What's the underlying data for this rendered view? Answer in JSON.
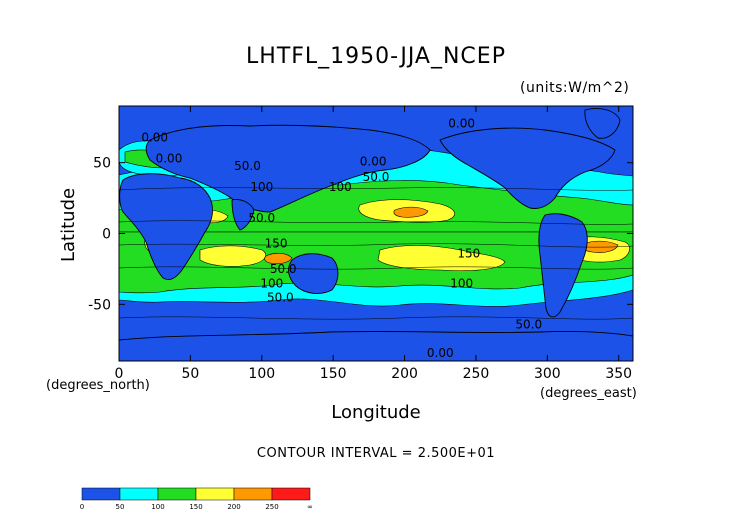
{
  "chart_data": {
    "type": "heatmap",
    "title": "LHTFL_1950-JJA_NCEP",
    "units": "(units:W/m^2)",
    "xlabel": "Longitude",
    "ylabel": "Latitude",
    "x_unit_label": "(degrees_east)",
    "y_unit_label": "(degrees_north)",
    "contour_interval_text": "CONTOUR INTERVAL = 2.500E+01",
    "xlim": [
      0,
      360
    ],
    "ylim": [
      -90,
      90
    ],
    "x_ticks": [
      0,
      50,
      100,
      150,
      200,
      250,
      300,
      350
    ],
    "y_ticks": [
      -50,
      0,
      50
    ],
    "contour_labels": [
      {
        "text": "0.00",
        "lon": 25,
        "lat": 65
      },
      {
        "text": "0.00",
        "lon": 35,
        "lat": 50
      },
      {
        "text": "50.0",
        "lon": 90,
        "lat": 45
      },
      {
        "text": "100",
        "lon": 100,
        "lat": 30
      },
      {
        "text": "50.0",
        "lon": 100,
        "lat": 8
      },
      {
        "text": "150",
        "lon": 110,
        "lat": -10
      },
      {
        "text": "50.0",
        "lon": 115,
        "lat": -28
      },
      {
        "text": "100",
        "lon": 107,
        "lat": -38
      },
      {
        "text": "50.0",
        "lon": 113,
        "lat": -48
      },
      {
        "text": "100",
        "lon": 155,
        "lat": 30
      },
      {
        "text": "50.0",
        "lon": 180,
        "lat": 37
      },
      {
        "text": "0.00",
        "lon": 178,
        "lat": 48
      },
      {
        "text": "0.00",
        "lon": 240,
        "lat": 75
      },
      {
        "text": "150",
        "lon": 245,
        "lat": -17
      },
      {
        "text": "100",
        "lon": 240,
        "lat": -38
      },
      {
        "text": "50.0",
        "lon": 287,
        "lat": -67
      },
      {
        "text": "0.00",
        "lon": 225,
        "lat": -87
      }
    ],
    "colorbar": {
      "levels": [
        "0",
        "50",
        "100",
        "150",
        "200",
        "250",
        "∞"
      ],
      "colors": [
        "#1c52e8",
        "#00ffff",
        "#22dd22",
        "#ffff33",
        "#ff9900",
        "#ff1a1a"
      ]
    },
    "grid": false,
    "legend": "colorbar-bottom-left"
  }
}
